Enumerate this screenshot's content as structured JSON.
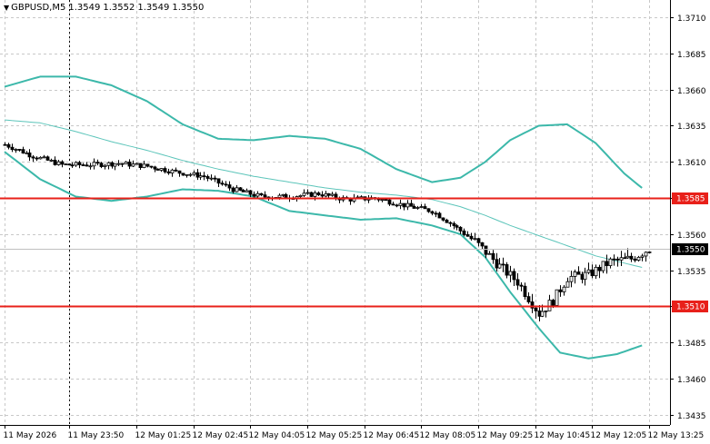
{
  "symbol_info": {
    "symbol_period": "GBPUSD,M5",
    "open": "1.3549",
    "high": "1.3552",
    "low": "1.3549",
    "close": "1.3550",
    "dropdown_icon": "triangle-down-icon"
  },
  "chart_data": {
    "type": "candlestick",
    "symbol": "GBPUSD",
    "timeframe": "M5",
    "ylim": [
      1.3428,
      1.3722
    ],
    "y_ticks": [
      "1.3710",
      "1.3685",
      "1.3660",
      "1.3635",
      "1.3610",
      "1.3585",
      "1.3560",
      "1.3535",
      "1.3510",
      "1.3485",
      "1.3460",
      "1.3435"
    ],
    "x_ticks": [
      "11 May 2026",
      "11 May 23:50",
      "12 May 01:25",
      "12 May 02:45",
      "12 May 04:05",
      "12 May 05:25",
      "12 May 06:45",
      "12 May 08:05",
      "12 May 09:25",
      "12 May 10:45",
      "12 May 12:05",
      "12 May 13:25"
    ],
    "x_tick_bar_index": [
      0,
      18,
      37,
      53,
      69,
      85,
      101,
      117,
      133,
      149,
      165,
      181
    ],
    "horizontal_levels": [
      {
        "value": 1.3585,
        "label": "1.3585",
        "color": "#e8201a"
      },
      {
        "value": 1.351,
        "label": "1.3510",
        "color": "#e8201a"
      }
    ],
    "current_price": {
      "value": 1.355,
      "label": "1.3550",
      "line_color": "#c0c0c0"
    },
    "session_separator_bar_index": 18,
    "colors": {
      "bollinger": "#3cb8aa",
      "moving_average": "#5cc5ba",
      "candles": "#000000",
      "grid": "#c8c8c8",
      "level_label_bg": "#e8201a",
      "current_label_bg": "#000000"
    },
    "bar_count": 182,
    "close_anchors": [
      [
        0,
        1.3622
      ],
      [
        8,
        1.3614
      ],
      [
        16,
        1.3608
      ],
      [
        24,
        1.3608
      ],
      [
        32,
        1.3609
      ],
      [
        40,
        1.3607
      ],
      [
        48,
        1.3603
      ],
      [
        56,
        1.36
      ],
      [
        64,
        1.3591
      ],
      [
        72,
        1.3586
      ],
      [
        80,
        1.3586
      ],
      [
        88,
        1.3588
      ],
      [
        96,
        1.3584
      ],
      [
        104,
        1.3585
      ],
      [
        112,
        1.358
      ],
      [
        120,
        1.3576
      ],
      [
        126,
        1.3566
      ],
      [
        132,
        1.3555
      ],
      [
        138,
        1.354
      ],
      [
        144,
        1.3527
      ],
      [
        150,
        1.3505
      ],
      [
        154,
        1.3514
      ],
      [
        158,
        1.353
      ],
      [
        164,
        1.3532
      ],
      [
        170,
        1.3541
      ],
      [
        176,
        1.3543
      ],
      [
        181,
        1.355
      ]
    ],
    "bollinger_upper": [
      [
        0,
        1.3662
      ],
      [
        10,
        1.3669
      ],
      [
        20,
        1.3669
      ],
      [
        30,
        1.3663
      ],
      [
        40,
        1.3652
      ],
      [
        50,
        1.3636
      ],
      [
        60,
        1.3626
      ],
      [
        70,
        1.3625
      ],
      [
        80,
        1.3628
      ],
      [
        90,
        1.3626
      ],
      [
        100,
        1.3619
      ],
      [
        110,
        1.3605
      ],
      [
        120,
        1.3596
      ],
      [
        128,
        1.3599
      ],
      [
        135,
        1.361
      ],
      [
        142,
        1.3625
      ],
      [
        150,
        1.3635
      ],
      [
        158,
        1.3636
      ],
      [
        166,
        1.3623
      ],
      [
        174,
        1.3602
      ],
      [
        179,
        1.3592
      ]
    ],
    "bollinger_lower": [
      [
        0,
        1.3617
      ],
      [
        10,
        1.3598
      ],
      [
        20,
        1.3586
      ],
      [
        30,
        1.3583
      ],
      [
        40,
        1.3586
      ],
      [
        50,
        1.3591
      ],
      [
        60,
        1.359
      ],
      [
        70,
        1.3586
      ],
      [
        80,
        1.3576
      ],
      [
        90,
        1.3573
      ],
      [
        100,
        1.357
      ],
      [
        110,
        1.3571
      ],
      [
        120,
        1.3566
      ],
      [
        128,
        1.356
      ],
      [
        135,
        1.3544
      ],
      [
        142,
        1.352
      ],
      [
        150,
        1.3495
      ],
      [
        156,
        1.3478
      ],
      [
        164,
        1.3474
      ],
      [
        172,
        1.3477
      ],
      [
        179,
        1.3483
      ]
    ],
    "moving_average": [
      [
        0,
        1.3639
      ],
      [
        10,
        1.3637
      ],
      [
        20,
        1.3631
      ],
      [
        30,
        1.3624
      ],
      [
        40,
        1.3618
      ],
      [
        50,
        1.3611
      ],
      [
        60,
        1.3605
      ],
      [
        70,
        1.36
      ],
      [
        80,
        1.3596
      ],
      [
        90,
        1.3592
      ],
      [
        100,
        1.3589
      ],
      [
        110,
        1.3587
      ],
      [
        120,
        1.3584
      ],
      [
        128,
        1.3579
      ],
      [
        135,
        1.3573
      ],
      [
        142,
        1.3566
      ],
      [
        150,
        1.3559
      ],
      [
        158,
        1.3552
      ],
      [
        166,
        1.3545
      ],
      [
        174,
        1.354
      ],
      [
        179,
        1.3537
      ]
    ]
  }
}
